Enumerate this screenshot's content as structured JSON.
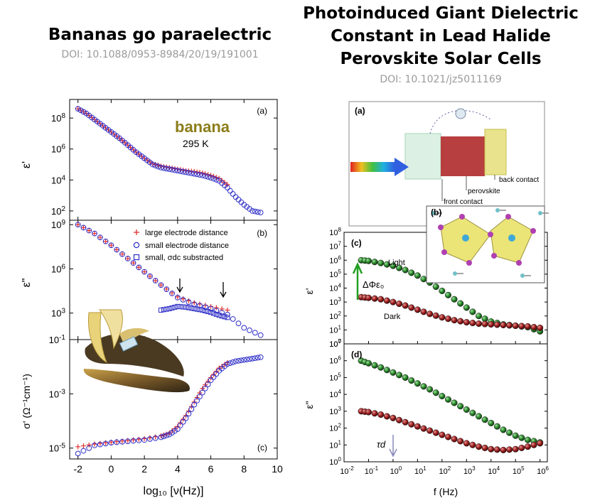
{
  "left": {
    "title": "Bananas go paraelectric",
    "doi": "DOI: 10.1088/0953-8984/20/19/191001",
    "panel_label_a": "(a)",
    "panel_label_b": "(b)",
    "panel_label_c": "(c)",
    "banana_word": "banana",
    "temperature": "295 K",
    "ylabel_a": "ε'",
    "ylabel_b": "ε\"",
    "ylabel_c": "σ' (Ω⁻¹cm⁻¹)",
    "xlabel": "log₁₀ [ν(Hz)]",
    "legend": [
      "large electrode distance",
      "small electrode distance",
      "small, σdc substracted"
    ],
    "colors": {
      "large": "#e03030",
      "small": "#3030c8",
      "banana_text": "#8b7d1a"
    }
  },
  "right": {
    "title_lines": [
      "Photoinduced Giant Dielectric",
      "Constant in Lead Halide",
      "Perovskite Solar Cells"
    ],
    "doi": "DOI: 10.1021/jz5011169",
    "panel_label_a": "(a)",
    "panel_label_b": "(b)",
    "panel_label_c": "(c)",
    "panel_label_d": "(d)",
    "device_labels": [
      "back contact",
      "perovskite",
      "front contact"
    ],
    "light_label": "Light",
    "dark_label": "Dark",
    "delta_label": "ΔΦε₀",
    "tau_label": "τd",
    "ylabel_c": "ε'",
    "ylabel_d": "ε\"",
    "xlabel": "f (Hz)",
    "colors": {
      "light": "#2e8b2e",
      "dark": "#a02020",
      "arrow": "#22a022"
    }
  },
  "chart_data": [
    {
      "type": "scatter",
      "panel": "left (a)",
      "ylabel": "ε'",
      "y_scale": "log",
      "xlim": [
        -2.5,
        10
      ],
      "ylim_log10": [
        1.4,
        9.2
      ],
      "y_ticks": [
        "10^2",
        "10^4",
        "10^6",
        "10^8"
      ],
      "series": [
        {
          "name": "large electrode distance",
          "marker": "plus",
          "x": [
            -2,
            -1.5,
            -1,
            -0.5,
            0,
            0.5,
            1,
            1.5,
            2,
            2.5,
            3,
            3.5,
            4,
            4.5,
            5,
            5.5,
            6,
            6.5,
            7
          ],
          "log10_y": [
            8.6,
            8.3,
            7.9,
            7.5,
            7.1,
            6.7,
            6.25,
            5.8,
            5.4,
            5.05,
            4.9,
            4.8,
            4.7,
            4.6,
            4.55,
            4.45,
            4.3,
            4.1,
            3.7
          ]
        },
        {
          "name": "small electrode distance",
          "marker": "circle",
          "x": [
            -2,
            -1.5,
            -1,
            -0.5,
            0,
            0.5,
            1,
            1.5,
            2,
            2.5,
            3,
            3.5,
            4,
            4.5,
            5,
            5.5,
            6,
            6.5,
            7,
            7.5,
            8,
            8.5,
            9
          ],
          "log10_y": [
            8.6,
            8.3,
            7.9,
            7.5,
            7.1,
            6.7,
            6.25,
            5.8,
            5.4,
            5.0,
            4.8,
            4.7,
            4.6,
            4.5,
            4.4,
            4.3,
            4.15,
            3.95,
            3.5,
            2.9,
            2.4,
            2.0,
            1.9
          ]
        }
      ]
    },
    {
      "type": "scatter",
      "panel": "left (b)",
      "ylabel": "ε\"",
      "y_scale": "log",
      "xlim": [
        -2.5,
        10
      ],
      "ylim_log10": [
        1.2,
        9.3
      ],
      "y_ticks": [
        "10^3",
        "10^6",
        "10^9"
      ],
      "series": [
        {
          "name": "large electrode distance",
          "marker": "plus",
          "x": [
            -2,
            -1,
            0,
            1,
            2,
            3,
            4,
            5,
            6,
            7
          ],
          "log10_y": [
            9.0,
            8.4,
            7.6,
            6.7,
            5.8,
            4.9,
            4.1,
            3.7,
            3.45,
            3.2
          ]
        },
        {
          "name": "small electrode distance",
          "marker": "circle",
          "x": [
            -2,
            -1,
            0,
            1,
            2,
            3,
            4,
            5,
            6,
            7,
            8,
            9
          ],
          "log10_y": [
            9.0,
            8.4,
            7.6,
            6.7,
            5.8,
            4.9,
            4.05,
            3.6,
            3.3,
            2.9,
            2.0,
            1.5
          ]
        },
        {
          "name": "small, σdc substracted",
          "marker": "square",
          "x": [
            3,
            3.5,
            4,
            4.5,
            5,
            5.5,
            6,
            6.5,
            7
          ],
          "log10_y": [
            3.2,
            3.3,
            3.45,
            3.4,
            3.3,
            3.2,
            3.05,
            2.85,
            2.7
          ]
        }
      ]
    },
    {
      "type": "scatter",
      "panel": "left (c)",
      "ylabel": "σ' (Ω⁻¹cm⁻¹)",
      "xlabel": "log₁₀ [ν(Hz)]",
      "y_scale": "log",
      "xlim": [
        -2.5,
        10
      ],
      "x_ticks": [
        -2,
        0,
        2,
        4,
        6,
        8,
        10
      ],
      "ylim_log10": [
        -5.4,
        -1
      ],
      "y_ticks": [
        "10^-5",
        "10^-3",
        "10^-1"
      ],
      "series": [
        {
          "name": "large electrode distance",
          "marker": "plus",
          "x": [
            -2,
            -1,
            0,
            1,
            2,
            3,
            3.5,
            4,
            4.5,
            5,
            5.5,
            6,
            6.5,
            7
          ],
          "log10_y": [
            -4.95,
            -4.85,
            -4.78,
            -4.72,
            -4.65,
            -4.55,
            -4.45,
            -4.2,
            -3.8,
            -3.3,
            -2.8,
            -2.4,
            -2.05,
            -1.85
          ]
        },
        {
          "name": "small electrode distance",
          "marker": "circle",
          "x": [
            -2,
            -1,
            0,
            1,
            2,
            3,
            3.5,
            4,
            4.5,
            5,
            5.5,
            6,
            6.5,
            7,
            7.5,
            8,
            8.5,
            9
          ],
          "log10_y": [
            -5.2,
            -4.9,
            -4.8,
            -4.75,
            -4.7,
            -4.6,
            -4.5,
            -4.3,
            -3.9,
            -3.4,
            -2.95,
            -2.5,
            -2.15,
            -1.9,
            -1.8,
            -1.75,
            -1.7,
            -1.65
          ]
        }
      ]
    },
    {
      "type": "scatter",
      "panel": "right (c)",
      "ylabel": "ε'",
      "y_scale": "log",
      "x_scale": "log",
      "xlim_log10": [
        -2,
        6.3
      ],
      "ylim_log10": [
        0,
        8
      ],
      "y_ticks": [
        "10^0",
        "10^1",
        "10^2",
        "10^3",
        "10^4",
        "10^5",
        "10^6",
        "10^7",
        "10^8"
      ],
      "series": [
        {
          "name": "Light",
          "log10_x": [
            -1.3,
            -1,
            -0.5,
            0,
            0.5,
            1,
            1.5,
            2,
            2.5,
            3,
            3.5,
            4,
            4.5,
            5,
            5.5,
            6
          ],
          "log10_y": [
            6.0,
            5.95,
            5.8,
            5.6,
            5.3,
            4.9,
            4.4,
            3.8,
            3.2,
            2.6,
            2.0,
            1.6,
            1.4,
            1.3,
            1.2,
            0.9
          ]
        },
        {
          "name": "Dark",
          "log10_x": [
            -1.3,
            -1,
            -0.5,
            0,
            0.5,
            1,
            1.5,
            2,
            2.5,
            3,
            3.5,
            4,
            4.5,
            5,
            5.5,
            6
          ],
          "log10_y": [
            3.35,
            3.3,
            3.2,
            3.0,
            2.75,
            2.45,
            2.15,
            1.9,
            1.7,
            1.55,
            1.45,
            1.4,
            1.35,
            1.3,
            1.25,
            1.15
          ]
        }
      ]
    },
    {
      "type": "scatter",
      "panel": "right (d)",
      "ylabel": "ε\"",
      "xlabel": "f (Hz)",
      "y_scale": "log",
      "x_scale": "log",
      "xlim_log10": [
        -2,
        6.3
      ],
      "x_ticks": [
        "10^-2",
        "10^-1",
        "10^0",
        "10^1",
        "10^2",
        "10^3",
        "10^4",
        "10^5",
        "10^6"
      ],
      "ylim_log10": [
        0,
        7
      ],
      "y_ticks": [
        "10^0",
        "10^1",
        "10^2",
        "10^3",
        "10^4",
        "10^5",
        "10^6",
        "10^7"
      ],
      "series": [
        {
          "name": "Light",
          "log10_x": [
            -1.3,
            -1,
            -0.5,
            0,
            0.5,
            1,
            1.5,
            2,
            2.5,
            3,
            3.5,
            4,
            4.5,
            5,
            5.5,
            6
          ],
          "log10_y": [
            6.0,
            5.85,
            5.6,
            5.3,
            5.0,
            4.65,
            4.3,
            3.9,
            3.5,
            3.1,
            2.7,
            2.3,
            1.9,
            1.55,
            1.3,
            1.15
          ]
        },
        {
          "name": "Dark",
          "log10_x": [
            -1.3,
            -1,
            -0.5,
            0,
            0.5,
            1,
            1.5,
            2,
            2.5,
            3,
            3.5,
            4,
            4.5,
            5,
            5.5,
            6
          ],
          "log10_y": [
            3.0,
            2.95,
            2.8,
            2.6,
            2.35,
            2.1,
            1.85,
            1.6,
            1.35,
            1.1,
            0.9,
            0.75,
            0.7,
            0.75,
            0.9,
            1.1
          ]
        }
      ]
    }
  ]
}
